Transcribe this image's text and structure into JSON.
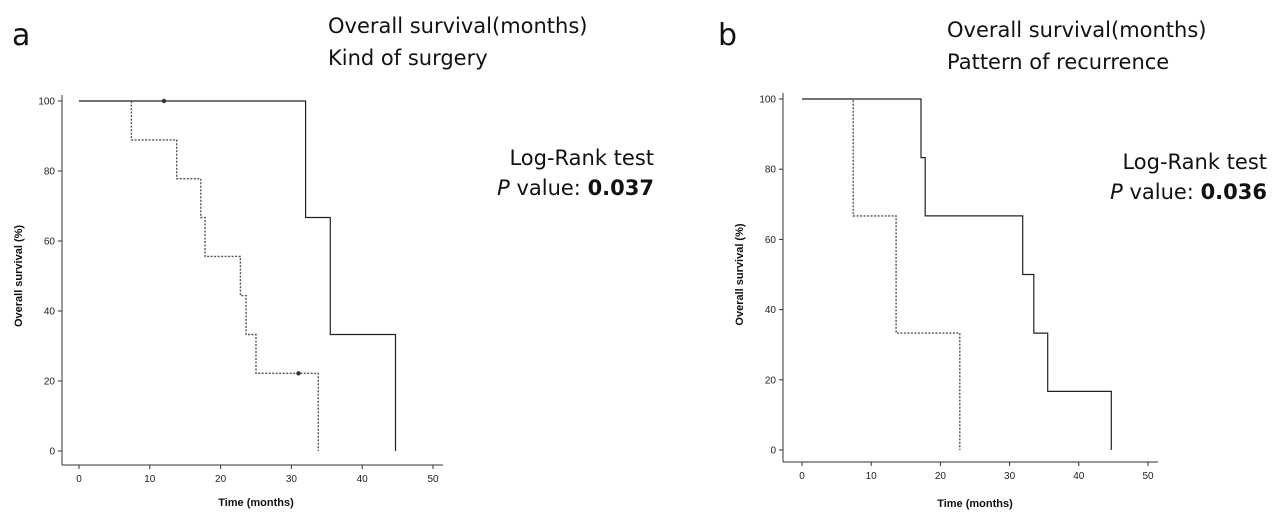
{
  "panels": [
    {
      "letter": "a",
      "title_line1": "Overall survival(months)",
      "title_line2": "Kind of surgery",
      "test_label": "Log-Rank test",
      "p_label": "P",
      "p_text": " value: ",
      "p_value": "0.037"
    },
    {
      "letter": "b",
      "title_line1": "Overall survival(months)",
      "title_line2": "Pattern of recurrence",
      "test_label": "Log-Rank test",
      "p_label": "P",
      "p_text": " value: ",
      "p_value": "0.036"
    }
  ],
  "chart_data": [
    {
      "type": "line",
      "subtype": "kaplan-meier-step",
      "xlabel": "Time (months)",
      "ylabel": "Overall survival (%)",
      "xlim": [
        0,
        50
      ],
      "ylim": [
        0,
        100
      ],
      "xticks": [
        0,
        10,
        20,
        30,
        40,
        50
      ],
      "yticks": [
        0,
        20,
        40,
        60,
        80,
        100
      ],
      "grid": false,
      "series": [
        {
          "style": "solid",
          "color": "#222222",
          "steps": [
            [
              0,
              100
            ],
            [
              32,
              100
            ],
            [
              32,
              66.7
            ],
            [
              35.5,
              66.7
            ],
            [
              35.5,
              33.3
            ],
            [
              44.7,
              33.3
            ],
            [
              44.7,
              0
            ]
          ],
          "censored": [
            [
              12,
              100
            ]
          ]
        },
        {
          "style": "dotted",
          "color": "#555555",
          "steps": [
            [
              0,
              100
            ],
            [
              7.4,
              100
            ],
            [
              7.4,
              88.9
            ],
            [
              13.8,
              88.9
            ],
            [
              13.8,
              77.8
            ],
            [
              17.2,
              77.8
            ],
            [
              17.2,
              66.7
            ],
            [
              17.8,
              66.7
            ],
            [
              17.8,
              55.6
            ],
            [
              22.8,
              55.6
            ],
            [
              22.8,
              44.4
            ],
            [
              23.6,
              44.4
            ],
            [
              23.6,
              33.3
            ],
            [
              25,
              33.3
            ],
            [
              25,
              22.2
            ],
            [
              33.8,
              22.2
            ],
            [
              33.8,
              0
            ]
          ],
          "censored": [
            [
              31,
              22.2
            ]
          ]
        }
      ]
    },
    {
      "type": "line",
      "subtype": "kaplan-meier-step",
      "xlabel": "Time (months)",
      "ylabel": "Overall survival (%)",
      "xlim": [
        0,
        50
      ],
      "ylim": [
        0,
        100
      ],
      "xticks": [
        0,
        10,
        20,
        30,
        40,
        50
      ],
      "yticks": [
        0,
        20,
        40,
        60,
        80,
        100
      ],
      "grid": false,
      "series": [
        {
          "style": "solid",
          "color": "#222222",
          "steps": [
            [
              0,
              100
            ],
            [
              17.2,
              100
            ],
            [
              17.2,
              83.3
            ],
            [
              17.8,
              83.3
            ],
            [
              17.8,
              66.7
            ],
            [
              31.9,
              66.7
            ],
            [
              31.9,
              50
            ],
            [
              33.5,
              50
            ],
            [
              33.5,
              33.3
            ],
            [
              35.5,
              33.3
            ],
            [
              35.5,
              16.7
            ],
            [
              44.7,
              16.7
            ],
            [
              44.7,
              0
            ]
          ],
          "censored": []
        },
        {
          "style": "dotted",
          "color": "#555555",
          "steps": [
            [
              0,
              100
            ],
            [
              7.4,
              100
            ],
            [
              7.4,
              66.7
            ],
            [
              13.6,
              66.7
            ],
            [
              13.6,
              33.3
            ],
            [
              22.8,
              33.3
            ],
            [
              22.8,
              0
            ]
          ],
          "censored": []
        }
      ]
    }
  ]
}
